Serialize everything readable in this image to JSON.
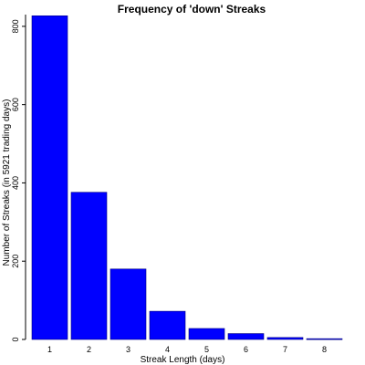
{
  "chart_data": {
    "type": "bar",
    "title": "Frequency of 'down' Streaks",
    "xlabel": "Streak Length (days)",
    "ylabel": "Number of Streaks (in 5921 trading days)",
    "categories": [
      "1",
      "2",
      "3",
      "4",
      "5",
      "6",
      "7",
      "8"
    ],
    "values": [
      827,
      376,
      180,
      72,
      28,
      15,
      5,
      2
    ],
    "ylim": [
      0,
      830
    ],
    "yticks": [
      "0",
      "200",
      "400",
      "600",
      "800"
    ],
    "bar_color": "#0000ff",
    "grid": false
  }
}
